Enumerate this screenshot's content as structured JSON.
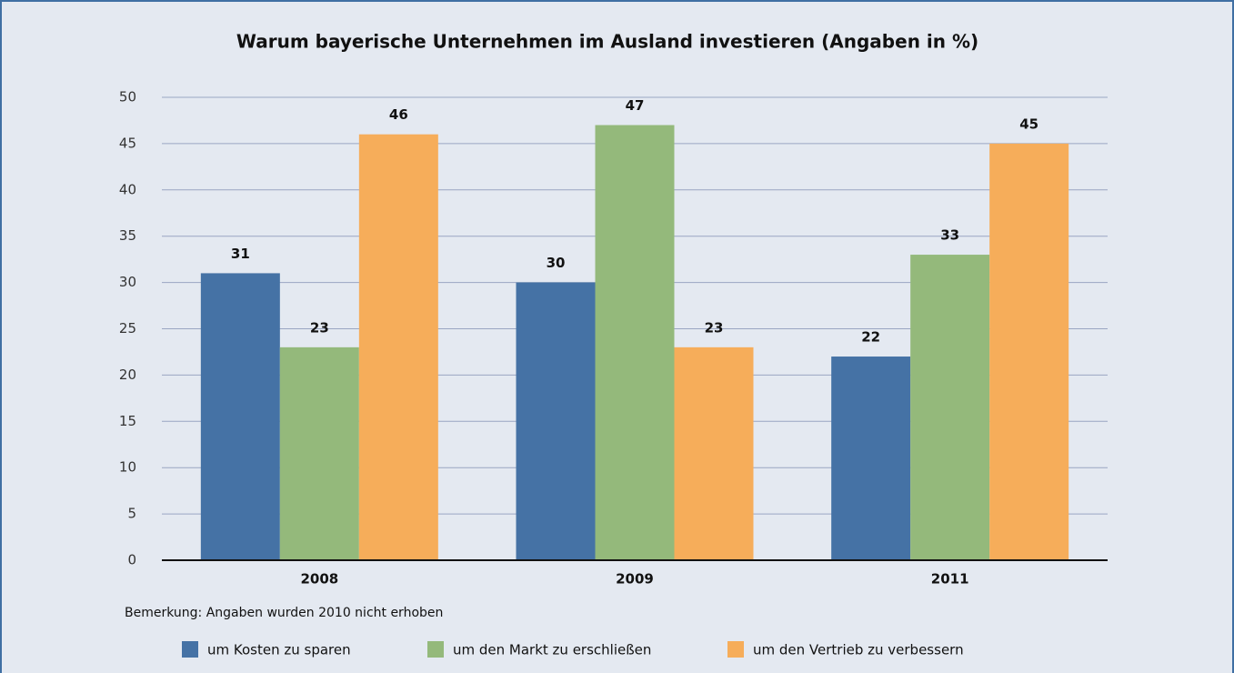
{
  "chart_data": {
    "type": "bar",
    "title": "Warum bayerische Unternehmen im Ausland investieren (Angaben in %)",
    "note": "Bemerkung: Angaben wurden 2010 nicht erhoben",
    "categories": [
      "2008",
      "2009",
      "2011"
    ],
    "series": [
      {
        "name": "um Kosten zu sparen",
        "color": "#4572a5",
        "values": [
          31,
          30,
          22
        ]
      },
      {
        "name": "um den Markt zu erschließen",
        "color": "#94b97b",
        "values": [
          23,
          47,
          33
        ]
      },
      {
        "name": "um den Vertrieb zu verbessern",
        "color": "#f6ad5a",
        "values": [
          46,
          23,
          45
        ]
      }
    ],
    "ylim": [
      0,
      50
    ],
    "yticks": [
      0,
      5,
      10,
      15,
      20,
      25,
      30,
      35,
      40,
      45,
      50
    ],
    "grid": true,
    "legend": "bottom"
  }
}
